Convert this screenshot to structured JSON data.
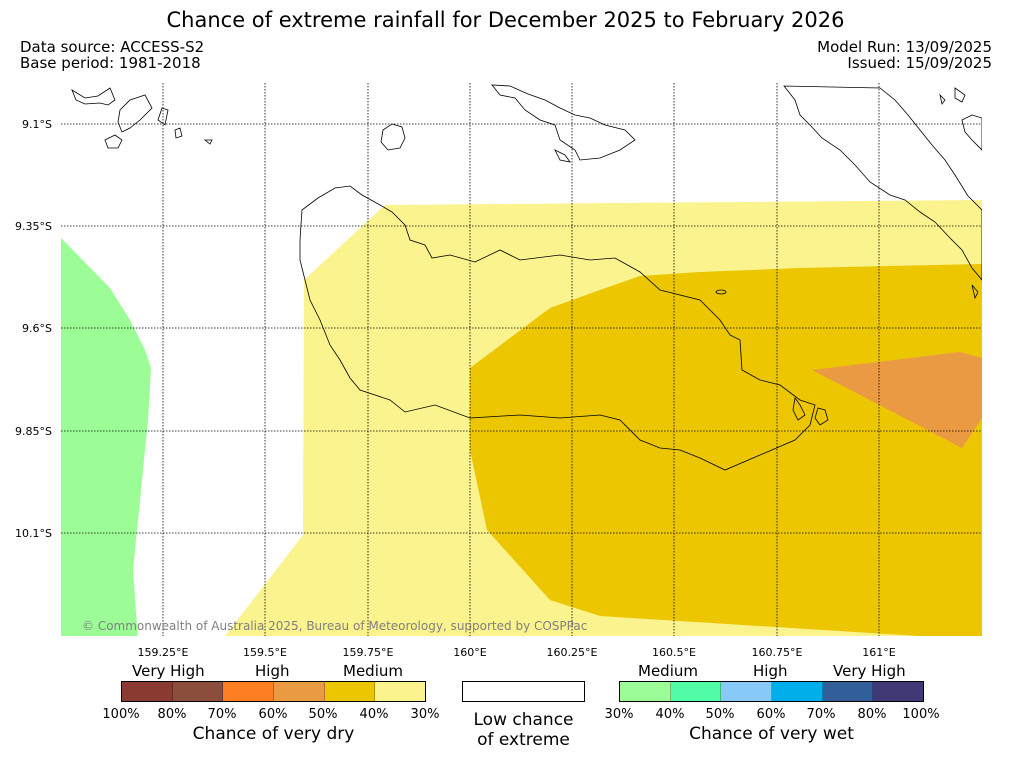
{
  "title": "Chance of extreme rainfall for December 2025 to February 2026",
  "meta": {
    "data_source": "Data source: ACCESS-S2",
    "base_period": "Base period: 1981-2018",
    "model_run": "Model Run: 13/09/2025",
    "issued": "Issued: 15/09/2025"
  },
  "map": {
    "lat_labels": [
      "9.1°S",
      "9.35°S",
      "9.6°S",
      "9.85°S",
      "10.1°S"
    ],
    "lon_labels": [
      "159.25°E",
      "159.5°E",
      "159.75°E",
      "160°E",
      "160.25°E",
      "160.5°E",
      "160.75°E",
      "161°E"
    ],
    "copyright": "© Commonwealth of Australia 2025, Bureau of Meteorology, supported by COSPPac",
    "colors": {
      "medium_dry": "#fbf38d",
      "dry_40_50": "#ecc600",
      "dry_50_60": "#eb9a44",
      "medium_wet": "#9cfd97"
    }
  },
  "legend": {
    "dry": {
      "categories": [
        "Very High",
        "High",
        "Medium"
      ],
      "percents": [
        "100%",
        "80%",
        "70%",
        "60%",
        "50%",
        "40%",
        "30%"
      ],
      "colors": [
        "#8b3a32",
        "#8c4e3c",
        "#fc7f22",
        "#eb9a44",
        "#ecc600",
        "#fbf38d"
      ],
      "caption": "Chance of very dry"
    },
    "neutral": {
      "caption_line1": "Low chance",
      "caption_line2": "of extreme"
    },
    "wet": {
      "categories": [
        "Medium",
        "High",
        "Very High"
      ],
      "percents": [
        "30%",
        "40%",
        "50%",
        "60%",
        "70%",
        "80%",
        "100%"
      ],
      "colors": [
        "#9cfd97",
        "#52fba6",
        "#87c9f9",
        "#00aeea",
        "#325e99",
        "#3f3a75"
      ],
      "caption": "Chance of very wet"
    }
  }
}
